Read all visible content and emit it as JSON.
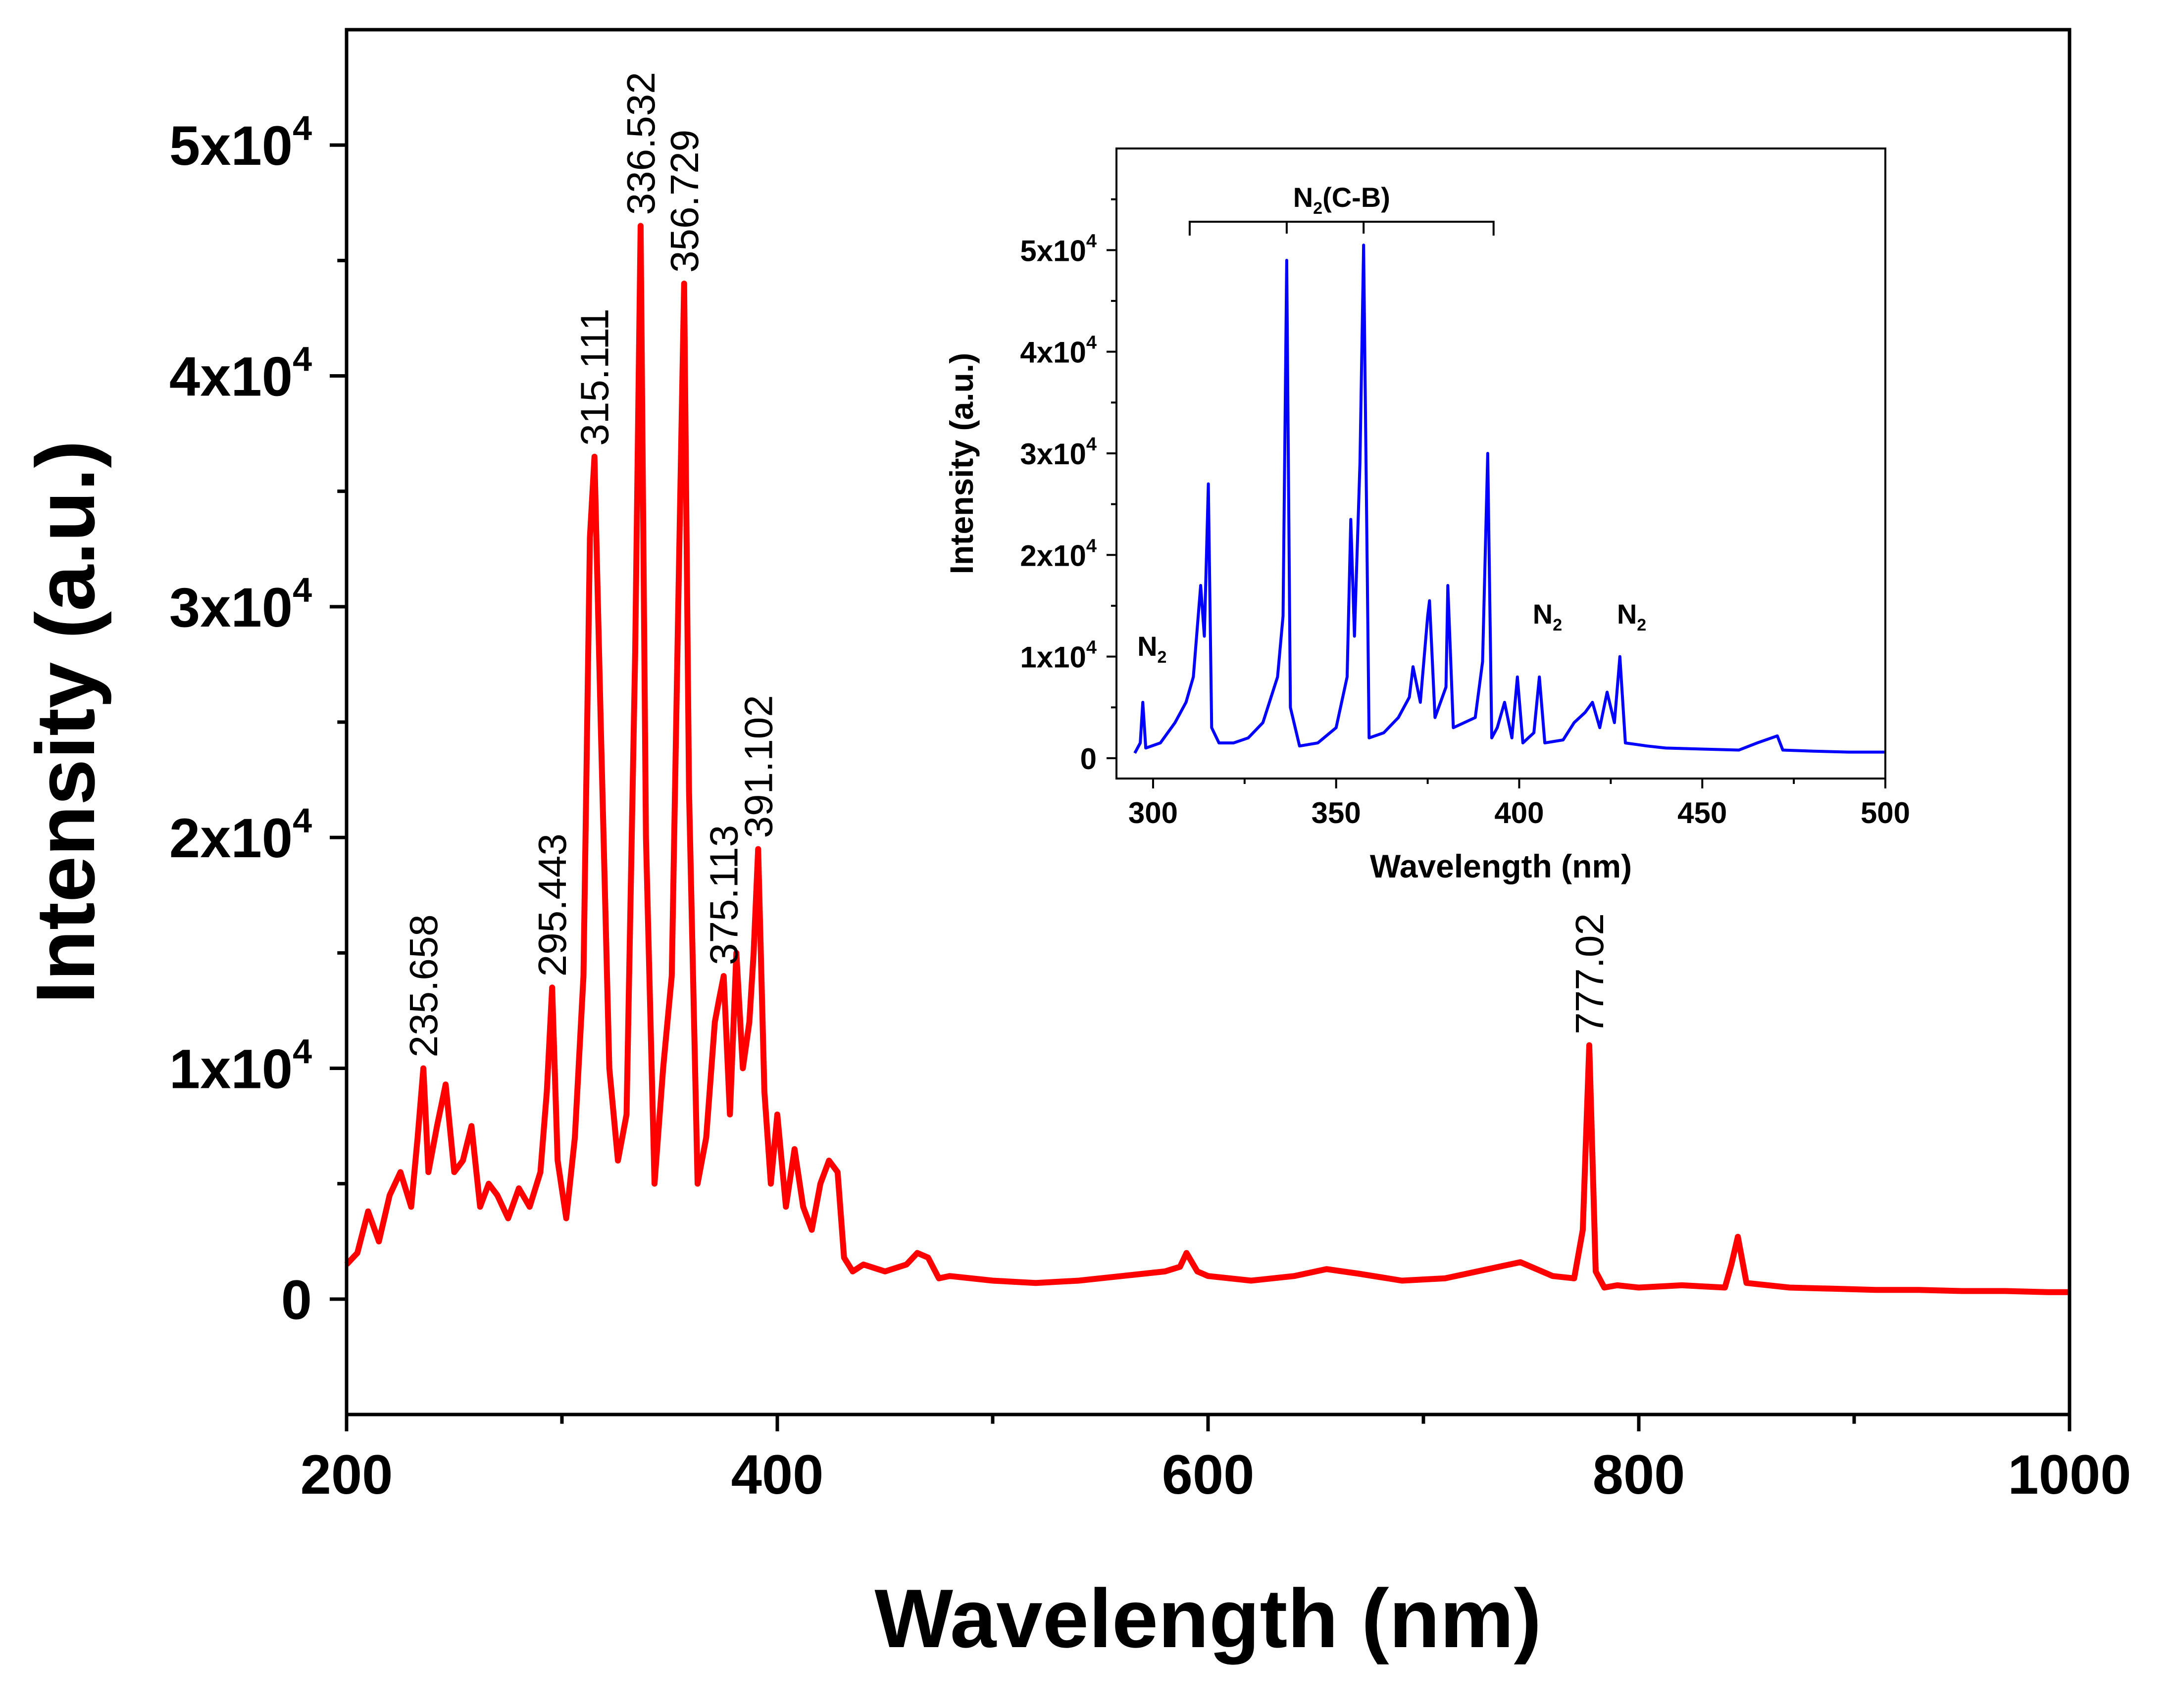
{
  "chart_data": [
    {
      "type": "line",
      "name": "main",
      "xlabel": "Wavelength (nm)",
      "ylabel": "Intensity (a.u.)",
      "xlim": [
        200,
        1000
      ],
      "ylim": [
        -5000,
        55000
      ],
      "xticks": [
        200,
        400,
        600,
        800,
        1000
      ],
      "xtick_labels": [
        "200",
        "400",
        "600",
        "800",
        "1000"
      ],
      "yticks": [
        0,
        10000,
        20000,
        30000,
        40000,
        50000
      ],
      "ytick_labels": [
        {
          "base": "0",
          "exp": ""
        },
        {
          "base": "1x10",
          "exp": "4"
        },
        {
          "base": "2x10",
          "exp": "4"
        },
        {
          "base": "3x10",
          "exp": "4"
        },
        {
          "base": "4x10",
          "exp": "4"
        },
        {
          "base": "5x10",
          "exp": "4"
        }
      ],
      "color": "#ff0000",
      "series": [
        {
          "name": "spectrum",
          "x": [
            200,
            205,
            210,
            215,
            220,
            225,
            230,
            233,
            235.658,
            238,
            242,
            246,
            250,
            254,
            258,
            262,
            266,
            270,
            275,
            280,
            285,
            290,
            293,
            295.443,
            298,
            302,
            306,
            310,
            313,
            315.111,
            318,
            322,
            326,
            330,
            334,
            336.532,
            339,
            343,
            347,
            351,
            354,
            356.729,
            359,
            363,
            367,
            371,
            373,
            375.113,
            378,
            381,
            384,
            387,
            389,
            391.102,
            394,
            397,
            400,
            404,
            408,
            412,
            416,
            420,
            424,
            428,
            431,
            435,
            440,
            450,
            460,
            465,
            470,
            475,
            480,
            500,
            520,
            540,
            560,
            580,
            587,
            590,
            595,
            600,
            620,
            640,
            655,
            670,
            690,
            710,
            730,
            745,
            760,
            770,
            774,
            777.02,
            780,
            784,
            790,
            800,
            820,
            840,
            843,
            846,
            850,
            870,
            890,
            910,
            930,
            950,
            970,
            990,
            1000
          ],
          "y": [
            1500,
            2000,
            3800,
            2500,
            4500,
            5500,
            4000,
            7000,
            10000,
            5500,
            7500,
            9300,
            5500,
            6000,
            7500,
            4000,
            5000,
            4500,
            3500,
            4800,
            4000,
            5500,
            9000,
            13500,
            6000,
            3500,
            7000,
            14000,
            33000,
            36500,
            25000,
            10000,
            6000,
            8000,
            28000,
            46500,
            20000,
            5000,
            10000,
            14000,
            30000,
            44000,
            22000,
            5000,
            7000,
            12000,
            13000,
            14000,
            8000,
            15000,
            10000,
            12000,
            15000,
            19500,
            9000,
            5000,
            8000,
            4000,
            6500,
            4000,
            3000,
            5000,
            6000,
            5500,
            1800,
            1200,
            1500,
            1200,
            1500,
            2000,
            1800,
            900,
            1000,
            800,
            700,
            800,
            1000,
            1200,
            1400,
            2000,
            1200,
            1000,
            800,
            1000,
            1300,
            1100,
            800,
            900,
            1300,
            1600,
            1000,
            900,
            3000,
            11000,
            1200,
            500,
            600,
            500,
            600,
            500,
            1500,
            2700,
            700,
            500,
            450,
            400,
            400,
            350,
            350,
            300,
            300
          ]
        }
      ],
      "annotations": [
        "235.658",
        "295.443",
        "315.111",
        "336.532",
        "356.729",
        "375.113",
        "391.102",
        "777.02"
      ],
      "annotation_x": [
        235.658,
        295.443,
        315.111,
        336.532,
        356.729,
        375.113,
        391.102,
        777.02
      ]
    },
    {
      "type": "line",
      "name": "inset",
      "xlabel": "Wavelength (nm)",
      "ylabel": "Intensity (a.u.)",
      "xlim": [
        290,
        500
      ],
      "ylim": [
        -2000,
        60000
      ],
      "xticks": [
        300,
        350,
        400,
        450,
        500
      ],
      "xtick_labels": [
        "300",
        "350",
        "400",
        "450",
        "500"
      ],
      "yticks": [
        0,
        10000,
        20000,
        30000,
        40000,
        50000
      ],
      "ytick_labels": [
        {
          "base": "0",
          "exp": ""
        },
        {
          "base": "1x10",
          "exp": "4"
        },
        {
          "base": "2x10",
          "exp": "4"
        },
        {
          "base": "3x10",
          "exp": "4"
        },
        {
          "base": "4x10",
          "exp": "4"
        },
        {
          "base": "5x10",
          "exp": "4"
        }
      ],
      "color": "#0000ff",
      "series": [
        {
          "name": "zoom",
          "x": [
            295,
            296.5,
            297.2,
            298,
            302,
            306,
            309,
            311,
            313,
            314,
            315.1,
            316,
            318,
            322,
            326,
            330,
            334,
            335.5,
            336.5,
            337.5,
            340,
            345,
            350,
            353,
            354,
            355,
            356.5,
            357.5,
            359,
            363,
            367,
            370,
            371,
            373,
            375,
            375.5,
            377,
            380,
            380.5,
            382,
            388,
            390,
            391.4,
            392.5,
            394,
            396,
            398,
            399.5,
            401,
            404,
            405.5,
            407,
            412,
            415,
            418,
            420,
            422,
            424,
            426,
            427.5,
            429,
            435,
            440,
            450,
            460,
            465,
            470.5,
            472,
            480,
            490,
            500
          ],
          "y": [
            500,
            1500,
            5500,
            1000,
            1500,
            3500,
            5500,
            8000,
            17000,
            12000,
            27000,
            3000,
            1500,
            1500,
            2000,
            3500,
            8000,
            14000,
            49000,
            5000,
            1200,
            1500,
            3000,
            8000,
            23500,
            12000,
            29000,
            50500,
            2000,
            2500,
            4000,
            6000,
            9000,
            5500,
            14000,
            15500,
            4000,
            7000,
            17000,
            3000,
            4000,
            9500,
            30000,
            2000,
            3000,
            5500,
            2000,
            8000,
            1500,
            2500,
            8000,
            1500,
            1800,
            3500,
            4500,
            5500,
            3000,
            6500,
            3500,
            10000,
            1500,
            1200,
            1000,
            900,
            800,
            1500,
            2200,
            800,
            700,
            600,
            600
          ]
        }
      ],
      "bracket_label": {
        "base": "N",
        "sub": "2",
        "rest": "(C-B)"
      },
      "bracket_range": [
        310,
        393
      ],
      "bracket_ticks": [
        336.5,
        357.5
      ],
      "annotations": [
        {
          "base": "N",
          "sub": "2",
          "x": 297
        },
        {
          "base": "N",
          "sub": "2",
          "x": 405
        },
        {
          "base": "N",
          "sub": "2",
          "x": 428
        }
      ]
    }
  ]
}
